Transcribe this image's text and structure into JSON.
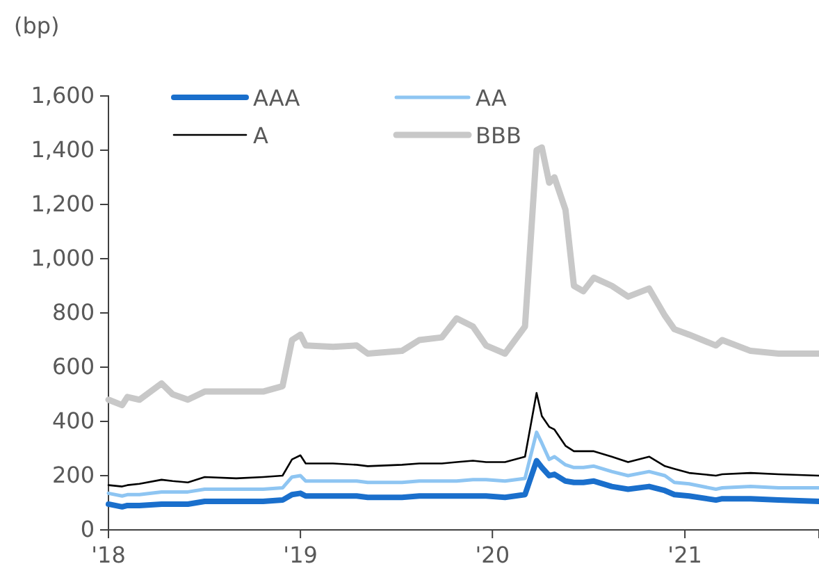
{
  "chart_data": {
    "type": "line",
    "ylabel": "(bp)",
    "x": [
      "2018-01-01",
      "2018-01-27",
      "2018-02-06",
      "2018-03-01",
      "2018-04-12",
      "2018-05-03",
      "2018-06-01",
      "2018-07-03",
      "2018-09-01",
      "2018-10-22",
      "2018-11-28",
      "2018-12-16",
      "2019-01-01",
      "2019-01-11",
      "2019-03-04",
      "2019-04-18",
      "2019-05-09",
      "2019-07-13",
      "2019-08-15",
      "2019-09-27",
      "2019-10-25",
      "2019-11-25",
      "2019-12-20",
      "2020-01-25",
      "2020-03-03",
      "2020-03-25",
      "2020-04-04",
      "2020-04-18",
      "2020-04-28",
      "2020-05-19",
      "2020-06-04",
      "2020-06-22",
      "2020-07-12",
      "2020-08-15",
      "2020-09-15",
      "2020-10-25",
      "2020-11-24",
      "2020-12-12",
      "2021-01-09",
      "2021-03-01",
      "2021-03-13",
      "2021-05-06",
      "2021-06-28",
      "2021-09-13"
    ],
    "series": [
      {
        "name": "AAA",
        "color": "#1a6fcc",
        "values": [
          95,
          85,
          90,
          90,
          95,
          95,
          95,
          105,
          105,
          105,
          110,
          130,
          135,
          125,
          125,
          125,
          120,
          120,
          125,
          125,
          125,
          125,
          125,
          120,
          130,
          255,
          230,
          200,
          205,
          180,
          175,
          175,
          180,
          160,
          150,
          160,
          145,
          130,
          125,
          110,
          115,
          115,
          110,
          105
        ]
      },
      {
        "name": "AA",
        "color": "#8ec5f2",
        "values": [
          135,
          125,
          130,
          130,
          140,
          140,
          140,
          150,
          150,
          150,
          155,
          195,
          200,
          180,
          180,
          180,
          175,
          175,
          180,
          180,
          180,
          185,
          185,
          180,
          190,
          360,
          320,
          260,
          270,
          240,
          230,
          230,
          235,
          215,
          200,
          215,
          200,
          175,
          170,
          150,
          155,
          160,
          155,
          155
        ]
      },
      {
        "name": "A",
        "color": "#000000",
        "values": [
          165,
          160,
          165,
          170,
          185,
          180,
          175,
          195,
          190,
          195,
          200,
          260,
          275,
          245,
          245,
          240,
          235,
          240,
          245,
          245,
          250,
          255,
          250,
          250,
          270,
          505,
          420,
          380,
          370,
          310,
          290,
          290,
          290,
          270,
          250,
          270,
          235,
          225,
          210,
          200,
          205,
          210,
          205,
          200
        ]
      },
      {
        "name": "BBB",
        "color": "#c8c8c8",
        "values": [
          480,
          460,
          490,
          480,
          540,
          500,
          480,
          510,
          510,
          510,
          530,
          700,
          720,
          680,
          675,
          680,
          650,
          660,
          700,
          710,
          780,
          750,
          680,
          650,
          750,
          1400,
          1410,
          1280,
          1300,
          1180,
          900,
          880,
          930,
          900,
          860,
          890,
          790,
          740,
          720,
          680,
          700,
          660,
          650,
          650
        ]
      }
    ],
    "xlim": [
      "2018-01-01",
      "2021-09-13"
    ],
    "xticks": [
      {
        "value": "2018-01-01",
        "label": "'18"
      },
      {
        "value": "2019-01-01",
        "label": "'19"
      },
      {
        "value": "2020-01-01",
        "label": "'20"
      },
      {
        "value": "2021-01-01",
        "label": "'21"
      }
    ],
    "ylim": [
      0,
      1600
    ],
    "yticks": [
      {
        "value": 0,
        "label": "0"
      },
      {
        "value": 200,
        "label": "200"
      },
      {
        "value": 400,
        "label": "400"
      },
      {
        "value": 600,
        "label": "600"
      },
      {
        "value": 800,
        "label": "800"
      },
      {
        "value": 1000,
        "label": "1,000"
      },
      {
        "value": 1200,
        "label": "1,200"
      },
      {
        "value": 1400,
        "label": "1,400"
      },
      {
        "value": 1600,
        "label": "1,600"
      }
    ],
    "legend": "top left",
    "grid": false
  }
}
